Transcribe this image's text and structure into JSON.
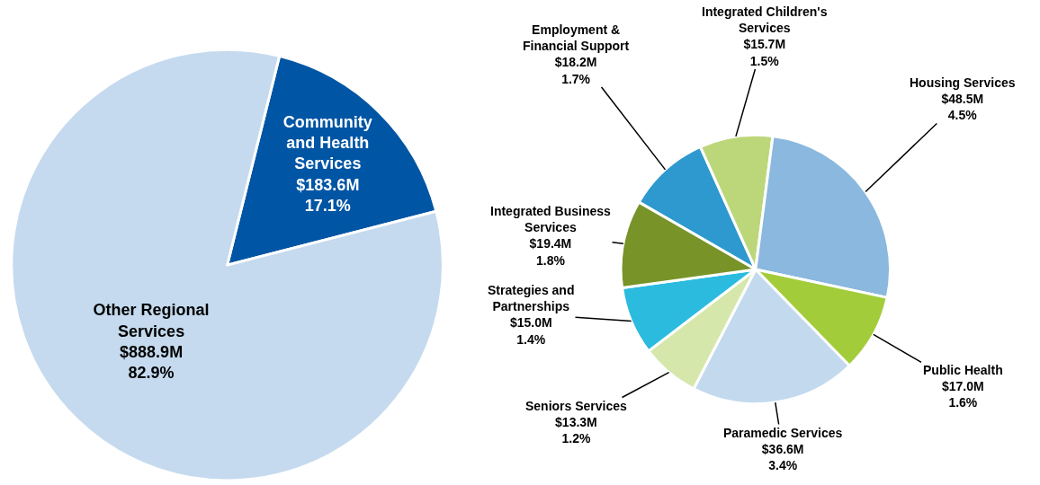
{
  "chart_data": [
    {
      "type": "pie",
      "categories": [
        "Community\nand Health\nServices",
        "Other Regional\nServices"
      ],
      "values": [
        17.1,
        82.9
      ],
      "colors": [
        "#0055a4",
        "#c5daee"
      ],
      "value_labels": [
        "$183.6M\n17.1%",
        "$888.9M\n82.9%"
      ]
    },
    {
      "type": "pie",
      "categories": [
        "Employment &\nFinancial Support",
        "Integrated Children's\nServices",
        "Housing Services",
        "Public Health",
        "Paramedic Services",
        "Seniors Services",
        "Strategies and\nPartnerships",
        "Integrated Business\nServices"
      ],
      "values": [
        1.7,
        1.5,
        4.5,
        1.6,
        3.4,
        1.2,
        1.4,
        1.8
      ],
      "colors": [
        "#2e99cf",
        "#bcd77a",
        "#8ab8de",
        "#a3cc3a",
        "#c3d9ee",
        "#d6e7ac",
        "#2bbbdf",
        "#789327"
      ],
      "value_labels": [
        "$18.2M\n1.7%",
        "$15.7M\n1.5%",
        "$48.5M\n4.5%",
        "$17.0M\n1.6%",
        "$36.6M\n3.4%",
        "$13.3M\n1.2%",
        "$15.0M\n1.4%",
        "$19.4M\n1.8%"
      ]
    }
  ]
}
